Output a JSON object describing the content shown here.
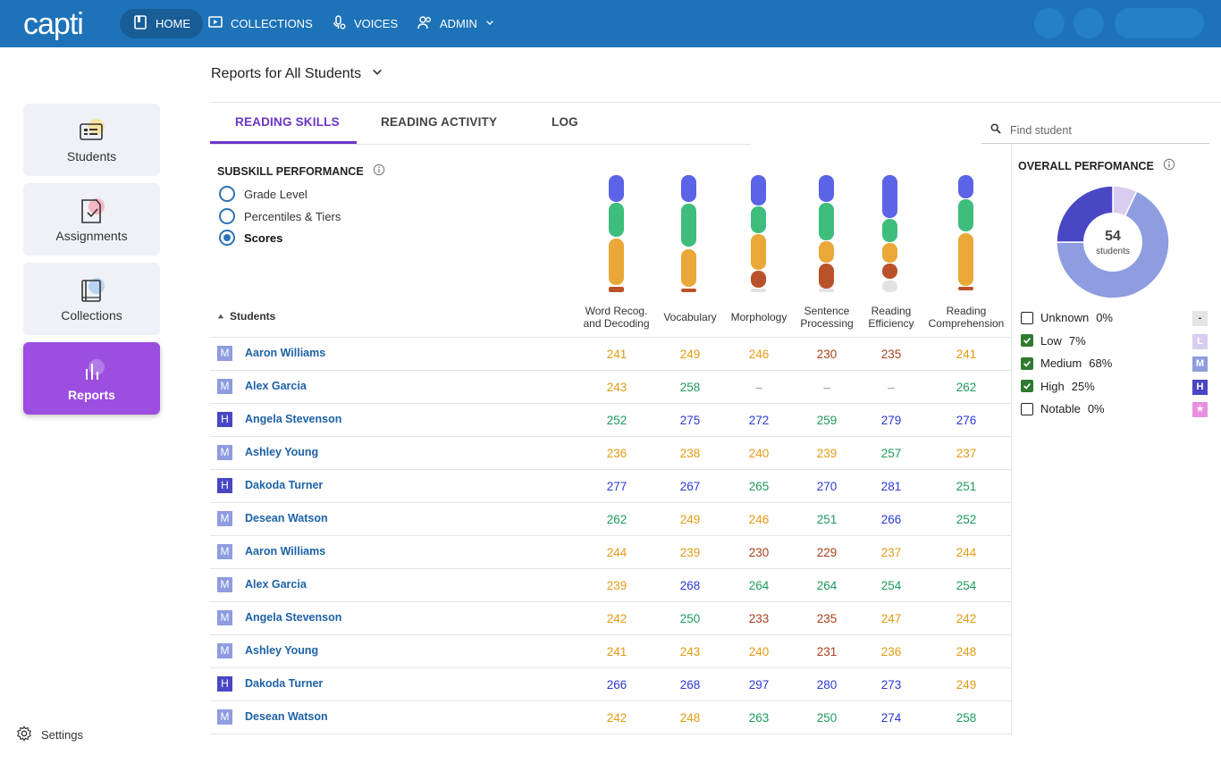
{
  "app": {
    "logo": "capti"
  },
  "nav": [
    {
      "label": "HOME",
      "icon": "book-icon",
      "active": true
    },
    {
      "label": "COLLECTIONS",
      "icon": "play-screen-icon"
    },
    {
      "label": "VOICES",
      "icon": "voice-gear-icon"
    },
    {
      "label": "ADMIN",
      "icon": "users-icon"
    }
  ],
  "sidebar": {
    "items": [
      {
        "label": "Students",
        "icon": "id-card-icon"
      },
      {
        "label": "Assignments",
        "icon": "assignment-icon"
      },
      {
        "label": "Collections",
        "icon": "book-icon"
      },
      {
        "label": "Reports",
        "icon": "bar-chart-icon",
        "active": true
      }
    ],
    "settings_label": "Settings"
  },
  "header": {
    "title": "Reports for All Students"
  },
  "tabs": [
    {
      "label": "READING SKILLS",
      "active": true
    },
    {
      "label": "READING ACTIVITY"
    },
    {
      "label": "LOG"
    }
  ],
  "search": {
    "placeholder": "Find student"
  },
  "subskill": {
    "title": "SUBSKILL PERFORMANCE",
    "options": [
      {
        "label": "Grade Level",
        "selected": false
      },
      {
        "label": "Percentiles & Tiers",
        "selected": false
      },
      {
        "label": "Scores",
        "selected": true
      }
    ]
  },
  "table": {
    "students_header": "Students",
    "columns": [
      {
        "line1": "Word Recog.",
        "line2": "and Decoding"
      },
      {
        "line1": "",
        "line2": "Vocabulary"
      },
      {
        "line1": "",
        "line2": "Morphology"
      },
      {
        "line1": "Sentence",
        "line2": "Processing"
      },
      {
        "line1": "Reading",
        "line2": "Efficiency"
      },
      {
        "line1": "Reading",
        "line2": "Comprehension"
      }
    ],
    "rows": [
      {
        "badge": "M",
        "name": "Aaron Williams",
        "scores": [
          "241",
          "249",
          "246",
          "230",
          "235",
          "241"
        ]
      },
      {
        "badge": "M",
        "name": "Alex Garcia",
        "scores": [
          "243",
          "258",
          "–",
          "–",
          "–",
          "262"
        ]
      },
      {
        "badge": "H",
        "name": "Angela Stevenson",
        "scores": [
          "252",
          "275",
          "272",
          "259",
          "279",
          "276"
        ]
      },
      {
        "badge": "M",
        "name": "Ashley Young",
        "scores": [
          "236",
          "238",
          "240",
          "239",
          "257",
          "237"
        ]
      },
      {
        "badge": "H",
        "name": "Dakoda Turner",
        "scores": [
          "277",
          "267",
          "265",
          "270",
          "281",
          "251"
        ]
      },
      {
        "badge": "M",
        "name": "Desean Watson",
        "scores": [
          "262",
          "249",
          "246",
          "251",
          "266",
          "252"
        ]
      },
      {
        "badge": "M",
        "name": "Aaron Williams",
        "scores": [
          "244",
          "239",
          "230",
          "229",
          "237",
          "244"
        ]
      },
      {
        "badge": "M",
        "name": "Alex Garcia",
        "scores": [
          "239",
          "268",
          "264",
          "264",
          "254",
          "254"
        ]
      },
      {
        "badge": "M",
        "name": "Angela Stevenson",
        "scores": [
          "242",
          "250",
          "233",
          "235",
          "247",
          "242"
        ]
      },
      {
        "badge": "M",
        "name": "Ashley Young",
        "scores": [
          "241",
          "243",
          "240",
          "231",
          "236",
          "248"
        ]
      },
      {
        "badge": "H",
        "name": "Dakoda Turner",
        "scores": [
          "266",
          "268",
          "297",
          "280",
          "273",
          "249"
        ]
      },
      {
        "badge": "M",
        "name": "Desean Watson",
        "scores": [
          "242",
          "248",
          "263",
          "250",
          "274",
          "258"
        ]
      }
    ]
  },
  "overall": {
    "title": "OVERALL PERFOMANCE",
    "total": "54",
    "total_label": "students",
    "legend": [
      {
        "label": "Unknown",
        "pct": "0%",
        "value": 0,
        "checked": false,
        "badge": "-",
        "color": "#e4e4e4"
      },
      {
        "label": "Low",
        "pct": "7%",
        "value": 7,
        "checked": true,
        "badge": "L",
        "color": "#d8cdef"
      },
      {
        "label": "Medium",
        "pct": "68%",
        "value": 68,
        "checked": true,
        "badge": "M",
        "color": "#8e9ce0"
      },
      {
        "label": "High",
        "pct": "25%",
        "value": 25,
        "checked": true,
        "badge": "H",
        "color": "#4a47c4"
      },
      {
        "label": "Notable",
        "pct": "0%",
        "value": 0,
        "checked": false,
        "badge": "★",
        "color": "#ea8fe0"
      }
    ]
  },
  "colors": {
    "primary": "#1e73b8",
    "accent": "#9b4ee0",
    "tab_active": "#6a35c8",
    "badge_M": "#8e9ce0",
    "badge_H": "#4a47c4",
    "score_high": "#2a3ad6",
    "score_mid_high": "#1d9a5c",
    "score_mid": "#e39a14",
    "score_low": "#a8401a"
  }
}
